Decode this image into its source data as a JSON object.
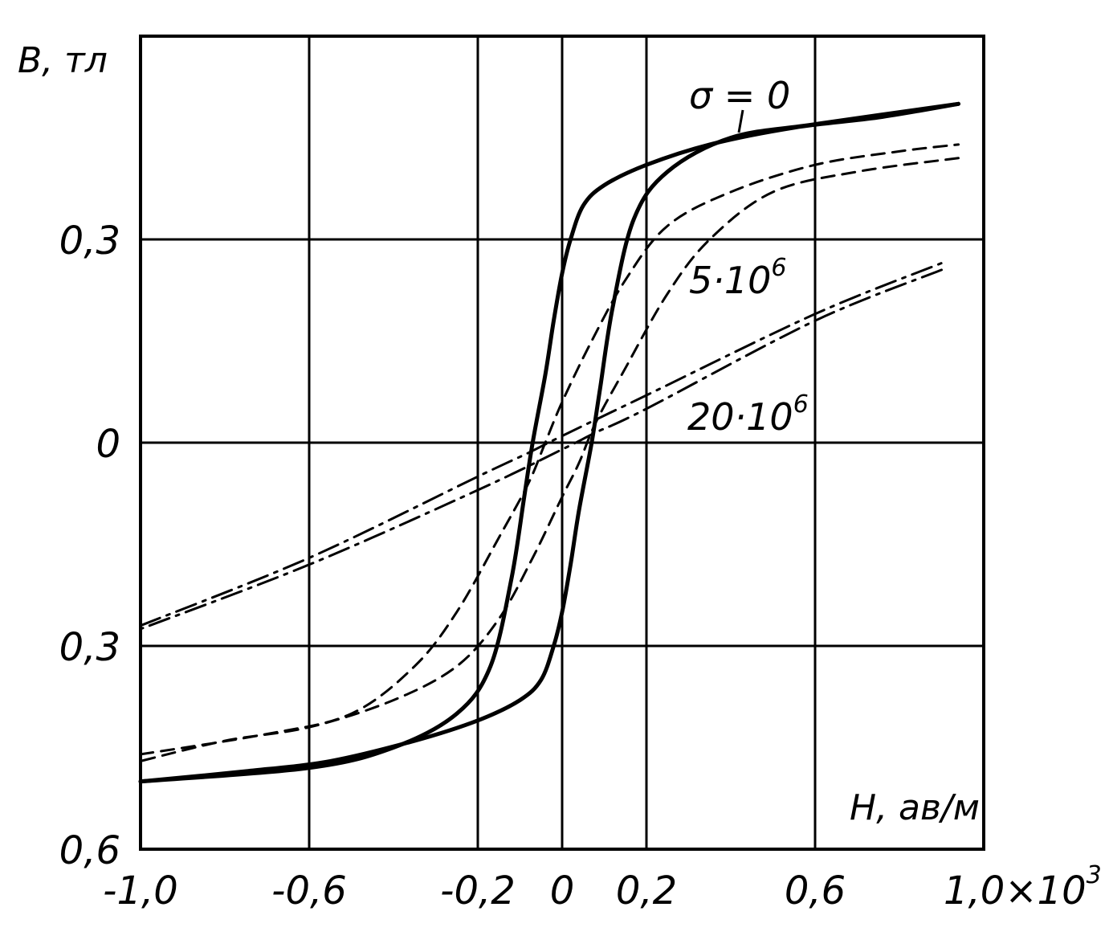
{
  "chart_data": {
    "type": "line",
    "title": "",
    "xlabel": "H, aв/м",
    "ylabel": "B, тл",
    "x_scale_note": "×10³",
    "xlim": [
      -1.0,
      1.0
    ],
    "ylim": [
      -0.6,
      0.6
    ],
    "grid": true,
    "x_ticks": [
      {
        "value": -1.0,
        "label": "-1,0"
      },
      {
        "value": -0.6,
        "label": "-0,6"
      },
      {
        "value": -0.2,
        "label": "-0,2"
      },
      {
        "value": 0.0,
        "label": "0"
      },
      {
        "value": 0.2,
        "label": "0,2"
      },
      {
        "value": 0.6,
        "label": "0,6"
      },
      {
        "value": 1.0,
        "label": "1,0×10"
      }
    ],
    "x_tick_superscript": "3",
    "y_ticks": [
      {
        "value": 0.3,
        "label": "0,3"
      },
      {
        "value": 0.0,
        "label": "0"
      },
      {
        "value": -0.3,
        "label": "0,3"
      },
      {
        "value": -0.6,
        "label": "0,6"
      }
    ],
    "series": [
      {
        "name": "σ = 0",
        "style": "solid",
        "color": "#000000",
        "branches": [
          {
            "x": [
              -1.0,
              -0.6,
              -0.4,
              -0.25,
              -0.17,
              -0.12,
              -0.09,
              -0.07,
              -0.04,
              -0.02,
              0.0,
              0.02,
              0.05,
              0.1,
              0.2,
              0.35,
              0.55,
              0.75,
              0.94
            ],
            "y": [
              -0.5,
              -0.48,
              -0.45,
              -0.4,
              -0.33,
              -0.2,
              -0.08,
              0.0,
              0.1,
              0.18,
              0.25,
              0.3,
              0.35,
              0.38,
              0.41,
              0.44,
              0.465,
              0.48,
              0.5
            ]
          },
          {
            "x": [
              0.94,
              0.6,
              0.4,
              0.25,
              0.17,
              0.12,
              0.09,
              0.07,
              0.04,
              0.02,
              0.0,
              -0.02,
              -0.05,
              -0.1,
              -0.2,
              -0.35,
              -0.55,
              -0.75,
              -1.0
            ],
            "y": [
              0.5,
              0.47,
              0.45,
              0.4,
              0.33,
              0.2,
              0.08,
              0.0,
              -0.1,
              -0.18,
              -0.25,
              -0.3,
              -0.35,
              -0.38,
              -0.41,
              -0.44,
              -0.47,
              -0.485,
              -0.5
            ]
          }
        ]
      },
      {
        "name": "5·10⁶",
        "style": "dashed",
        "color": "#000000",
        "branches": [
          {
            "x": [
              -1.0,
              -0.7,
              -0.5,
              -0.35,
              -0.25,
              -0.15,
              -0.08,
              -0.04,
              0.0,
              0.07,
              0.15,
              0.25,
              0.4,
              0.6,
              0.8,
              0.94
            ],
            "y": [
              -0.46,
              -0.43,
              -0.4,
              -0.33,
              -0.25,
              -0.14,
              -0.06,
              0.0,
              0.06,
              0.15,
              0.24,
              0.32,
              0.37,
              0.41,
              0.43,
              0.44
            ]
          },
          {
            "x": [
              0.94,
              0.7,
              0.5,
              0.35,
              0.25,
              0.15,
              0.08,
              0.04,
              0.0,
              -0.07,
              -0.15,
              -0.25,
              -0.4,
              -0.6,
              -0.8,
              -1.0
            ],
            "y": [
              0.42,
              0.4,
              0.37,
              0.3,
              0.22,
              0.11,
              0.03,
              -0.03,
              -0.08,
              -0.17,
              -0.26,
              -0.33,
              -0.38,
              -0.42,
              -0.44,
              -0.47
            ]
          }
        ]
      },
      {
        "name": "20·10⁶",
        "style": "dashdot",
        "color": "#000000",
        "branches": [
          {
            "x": [
              -1.0,
              -0.6,
              -0.2,
              -0.08,
              0.0,
              0.2,
              0.6,
              0.9
            ],
            "y": [
              -0.27,
              -0.17,
              -0.05,
              -0.015,
              0.01,
              0.07,
              0.19,
              0.265
            ]
          },
          {
            "x": [
              0.9,
              0.6,
              0.2,
              0.08,
              0.0,
              -0.2,
              -0.6,
              -1.0
            ],
            "y": [
              0.255,
              0.18,
              0.05,
              0.015,
              -0.01,
              -0.07,
              -0.18,
              -0.275
            ]
          }
        ]
      }
    ],
    "annotations": [
      {
        "text": "σ = 0"
      },
      {
        "text": "5·10",
        "superscript": "6"
      },
      {
        "text": "20·10",
        "superscript": "6"
      }
    ]
  }
}
